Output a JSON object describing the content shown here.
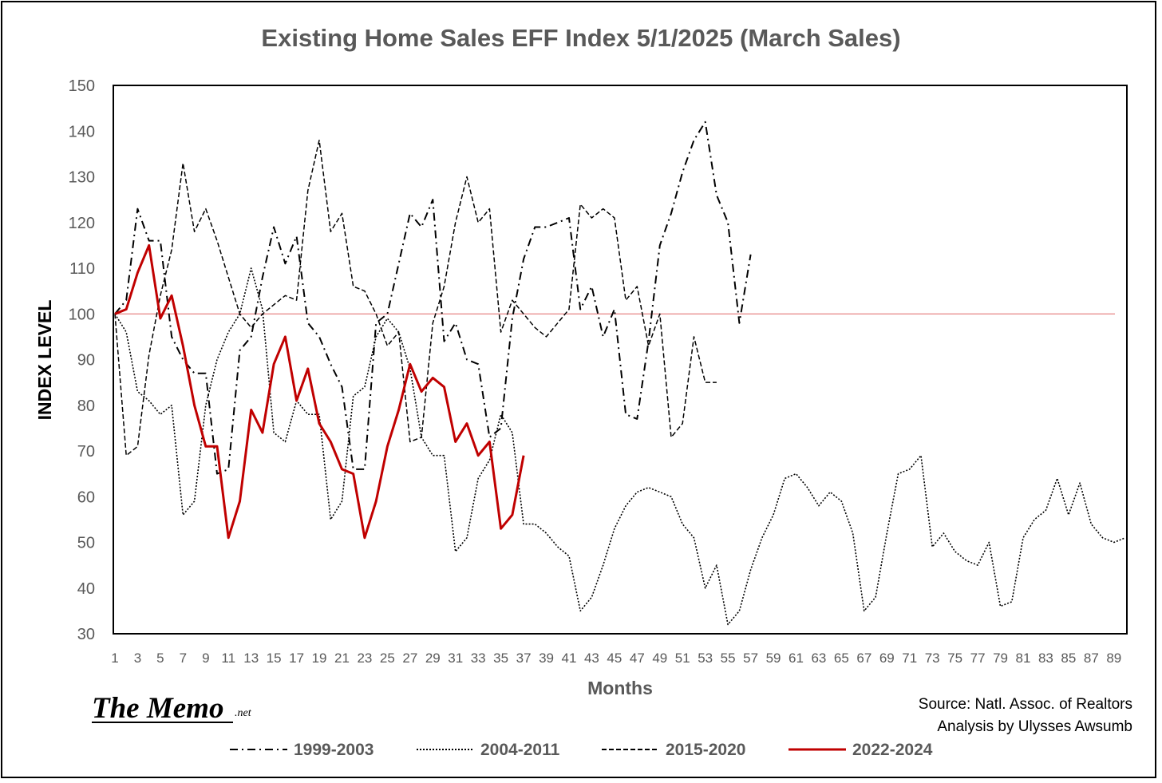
{
  "chart_data": {
    "type": "line",
    "title": "Existing Home  Sales  EFF  Index 5/1/2025 (March Sales)",
    "xlabel": "Months",
    "ylabel": "INDEX LEVEL",
    "xlim": [
      1,
      90
    ],
    "ylim": [
      30,
      150
    ],
    "yticks": [
      30,
      40,
      50,
      60,
      70,
      80,
      90,
      100,
      110,
      120,
      130,
      140,
      150
    ],
    "xticks": [
      1,
      3,
      5,
      7,
      9,
      11,
      13,
      15,
      17,
      19,
      21,
      23,
      25,
      27,
      29,
      31,
      33,
      35,
      37,
      39,
      41,
      43,
      45,
      47,
      49,
      51,
      53,
      55,
      57,
      59,
      61,
      63,
      65,
      67,
      69,
      71,
      73,
      75,
      77,
      79,
      81,
      83,
      85,
      87,
      89
    ],
    "reference_line": {
      "y": 100,
      "color": "#e06666"
    },
    "grid": false,
    "legend_position": "bottom",
    "series": [
      {
        "name": "1999-2003",
        "style": "dashdot",
        "color": "#000000",
        "values": [
          100,
          103,
          123,
          116,
          116,
          95,
          90,
          87,
          87,
          65,
          66,
          92,
          95,
          108,
          119,
          111,
          117,
          98,
          95,
          89,
          84,
          66,
          66,
          98,
          100,
          111,
          122,
          119,
          125,
          94,
          98,
          90,
          89,
          73,
          75,
          99,
          112,
          119,
          119,
          120,
          121,
          101,
          106,
          95,
          101,
          78,
          77,
          94,
          115,
          122,
          131,
          138,
          142,
          126,
          120,
          98,
          113
        ]
      },
      {
        "name": "2004-2011",
        "style": "dotted",
        "color": "#000000",
        "values": [
          100,
          96,
          83,
          81,
          78,
          80,
          56,
          59,
          80,
          90,
          96,
          100,
          110,
          101,
          74,
          72,
          81,
          78,
          78,
          55,
          59,
          82,
          84,
          95,
          99,
          96,
          88,
          73,
          69,
          69,
          48,
          51,
          64,
          68,
          78,
          74,
          54,
          54,
          52,
          49,
          47,
          35,
          38,
          45,
          53,
          58,
          61,
          62,
          61,
          60,
          54,
          51,
          40,
          45,
          32,
          35,
          44,
          51,
          56,
          64,
          65,
          62,
          58,
          61,
          59,
          52,
          35,
          38,
          52,
          65,
          66,
          69,
          49,
          52,
          48,
          46,
          45,
          50,
          36,
          37,
          51,
          55,
          57,
          64,
          56,
          63,
          54,
          51,
          50,
          51
        ]
      },
      {
        "name": "2015-2020",
        "style": "dashed",
        "color": "#000000",
        "values": [
          100,
          69,
          71,
          91,
          104,
          114,
          133,
          118,
          123,
          116,
          108,
          100,
          97,
          100,
          102,
          104,
          103,
          127,
          138,
          118,
          122,
          106,
          105,
          100,
          93,
          96,
          72,
          73,
          98,
          106,
          120,
          130,
          120,
          123,
          96,
          103,
          100,
          97,
          95,
          98,
          101,
          124,
          121,
          123,
          121,
          103,
          106,
          93,
          100,
          73,
          76,
          95,
          85,
          85
        ]
      },
      {
        "name": "2022-2024",
        "style": "solid",
        "color": "#c00000",
        "values": [
          100,
          101,
          109,
          115,
          99,
          104,
          93,
          80,
          71,
          71,
          51,
          59,
          79,
          74,
          89,
          95,
          81,
          88,
          76,
          72,
          66,
          65,
          51,
          59,
          71,
          79,
          89,
          83,
          86,
          84,
          72,
          76,
          69,
          72,
          53,
          56,
          69
        ]
      }
    ]
  },
  "source_note": {
    "line1": "Source: Natl. Assoc. of Realtors",
    "line2": "Analysis by Ulysses Awsumb"
  },
  "logo": {
    "text": "The Memo",
    "suffix": ".net"
  }
}
